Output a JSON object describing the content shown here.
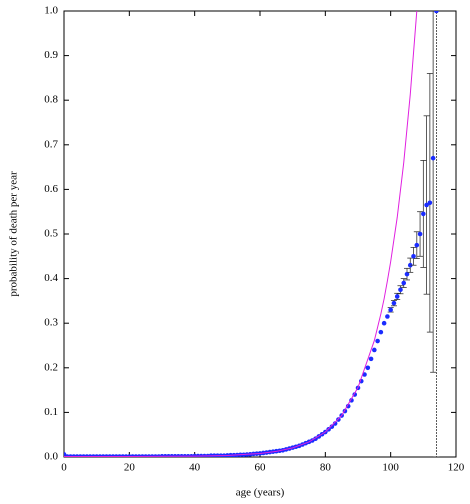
{
  "chart_data": {
    "type": "scatter",
    "xlabel": "age (years)",
    "ylabel": "probability of death per year",
    "xlim": [
      0,
      120
    ],
    "ylim": [
      0,
      1
    ],
    "xticks": [
      0,
      20,
      40,
      60,
      80,
      100,
      120
    ],
    "yticks": [
      {
        "value": 0,
        "label": "0.0"
      },
      0.1,
      0.2,
      0.3,
      0.4,
      0.5,
      0.6,
      0.7,
      0.8,
      0.9,
      {
        "value": 1,
        "label": "1.0"
      }
    ],
    "series": [
      {
        "kind": "points",
        "color": "#1a2cff",
        "x": [
          0,
          1,
          2,
          3,
          4,
          5,
          6,
          7,
          8,
          9,
          10,
          11,
          12,
          13,
          14,
          15,
          16,
          17,
          18,
          19,
          20,
          21,
          22,
          23,
          24,
          25,
          26,
          27,
          28,
          29,
          30,
          31,
          32,
          33,
          34,
          35,
          36,
          37,
          38,
          39,
          40,
          41,
          42,
          43,
          44,
          45,
          46,
          47,
          48,
          49,
          50,
          51,
          52,
          53,
          54,
          55,
          56,
          57,
          58,
          59,
          60,
          61,
          62,
          63,
          64,
          65,
          66,
          67,
          68,
          69,
          70,
          71,
          72,
          73,
          74,
          75,
          76,
          77,
          78,
          79,
          80,
          81,
          82,
          83,
          84,
          85,
          86,
          87,
          88,
          89,
          90,
          91,
          92,
          93,
          94,
          95,
          96,
          97,
          98,
          99,
          100,
          101,
          102,
          103,
          104,
          105,
          106,
          107,
          108,
          109,
          110,
          111,
          112,
          113,
          114
        ],
        "values": [
          0.006,
          0.001,
          0.001,
          0.001,
          0.001,
          0.001,
          0.001,
          0.001,
          0.001,
          0.001,
          0.001,
          0.001,
          0.001,
          0.001,
          0.001,
          0.001,
          0.001,
          0.001,
          0.001,
          0.001,
          0.001,
          0.001,
          0.001,
          0.001,
          0.001,
          0.001,
          0.001,
          0.001,
          0.001,
          0.001,
          0.0015,
          0.0015,
          0.0015,
          0.0015,
          0.0015,
          0.0015,
          0.0015,
          0.0015,
          0.0015,
          0.0015,
          0.002,
          0.002,
          0.002,
          0.002,
          0.002,
          0.003,
          0.003,
          0.003,
          0.003,
          0.003,
          0.0035,
          0.004,
          0.004,
          0.0045,
          0.005,
          0.005,
          0.0055,
          0.006,
          0.007,
          0.0075,
          0.008,
          0.009,
          0.01,
          0.011,
          0.012,
          0.013,
          0.014,
          0.015,
          0.017,
          0.019,
          0.021,
          0.023,
          0.025,
          0.028,
          0.031,
          0.034,
          0.037,
          0.041,
          0.046,
          0.051,
          0.056,
          0.062,
          0.068,
          0.075,
          0.084,
          0.093,
          0.103,
          0.114,
          0.127,
          0.14,
          0.155,
          0.17,
          0.185,
          0.2,
          0.22,
          0.24,
          0.26,
          0.28,
          0.3,
          0.315,
          0.33,
          0.345,
          0.36,
          0.375,
          0.39,
          0.41,
          0.43,
          0.45,
          0.475,
          0.5,
          0.545,
          0.565,
          0.57,
          0.67,
          1
        ],
        "errors": [
          null,
          null,
          null,
          null,
          null,
          null,
          null,
          null,
          null,
          null,
          null,
          null,
          null,
          null,
          null,
          null,
          null,
          null,
          null,
          null,
          null,
          null,
          null,
          null,
          null,
          null,
          null,
          null,
          null,
          null,
          null,
          null,
          null,
          null,
          null,
          null,
          null,
          null,
          null,
          null,
          null,
          null,
          null,
          null,
          null,
          null,
          null,
          null,
          null,
          null,
          null,
          null,
          null,
          null,
          null,
          null,
          null,
          null,
          null,
          null,
          null,
          null,
          null,
          null,
          null,
          null,
          null,
          null,
          null,
          null,
          null,
          null,
          null,
          null,
          null,
          null,
          null,
          null,
          null,
          null,
          null,
          null,
          null,
          null,
          null,
          null,
          null,
          null,
          null,
          null,
          null,
          null,
          null,
          null,
          null,
          null,
          null,
          null,
          null,
          null,
          0.005,
          0.006,
          0.007,
          0.009,
          0.01,
          0.013,
          0.016,
          0.02,
          0.03,
          0.05,
          0.12,
          0.2,
          0.29,
          0.48,
          1
        ]
      },
      {
        "kind": "line",
        "color": "#e020e0",
        "x": [
          0,
          20,
          40,
          50,
          60,
          65,
          70,
          75,
          80,
          85,
          90,
          95,
          97,
          98,
          99,
          100,
          102,
          104,
          106,
          108
        ],
        "values": [
          0.001,
          0.0011,
          0.0019,
          0.0035,
          0.0079,
          0.0126,
          0.0205,
          0.0338,
          0.056,
          0.093,
          0.156,
          0.261,
          0.321,
          0.355,
          0.395,
          0.438,
          0.537,
          0.66,
          0.813,
          1
        ]
      }
    ]
  }
}
